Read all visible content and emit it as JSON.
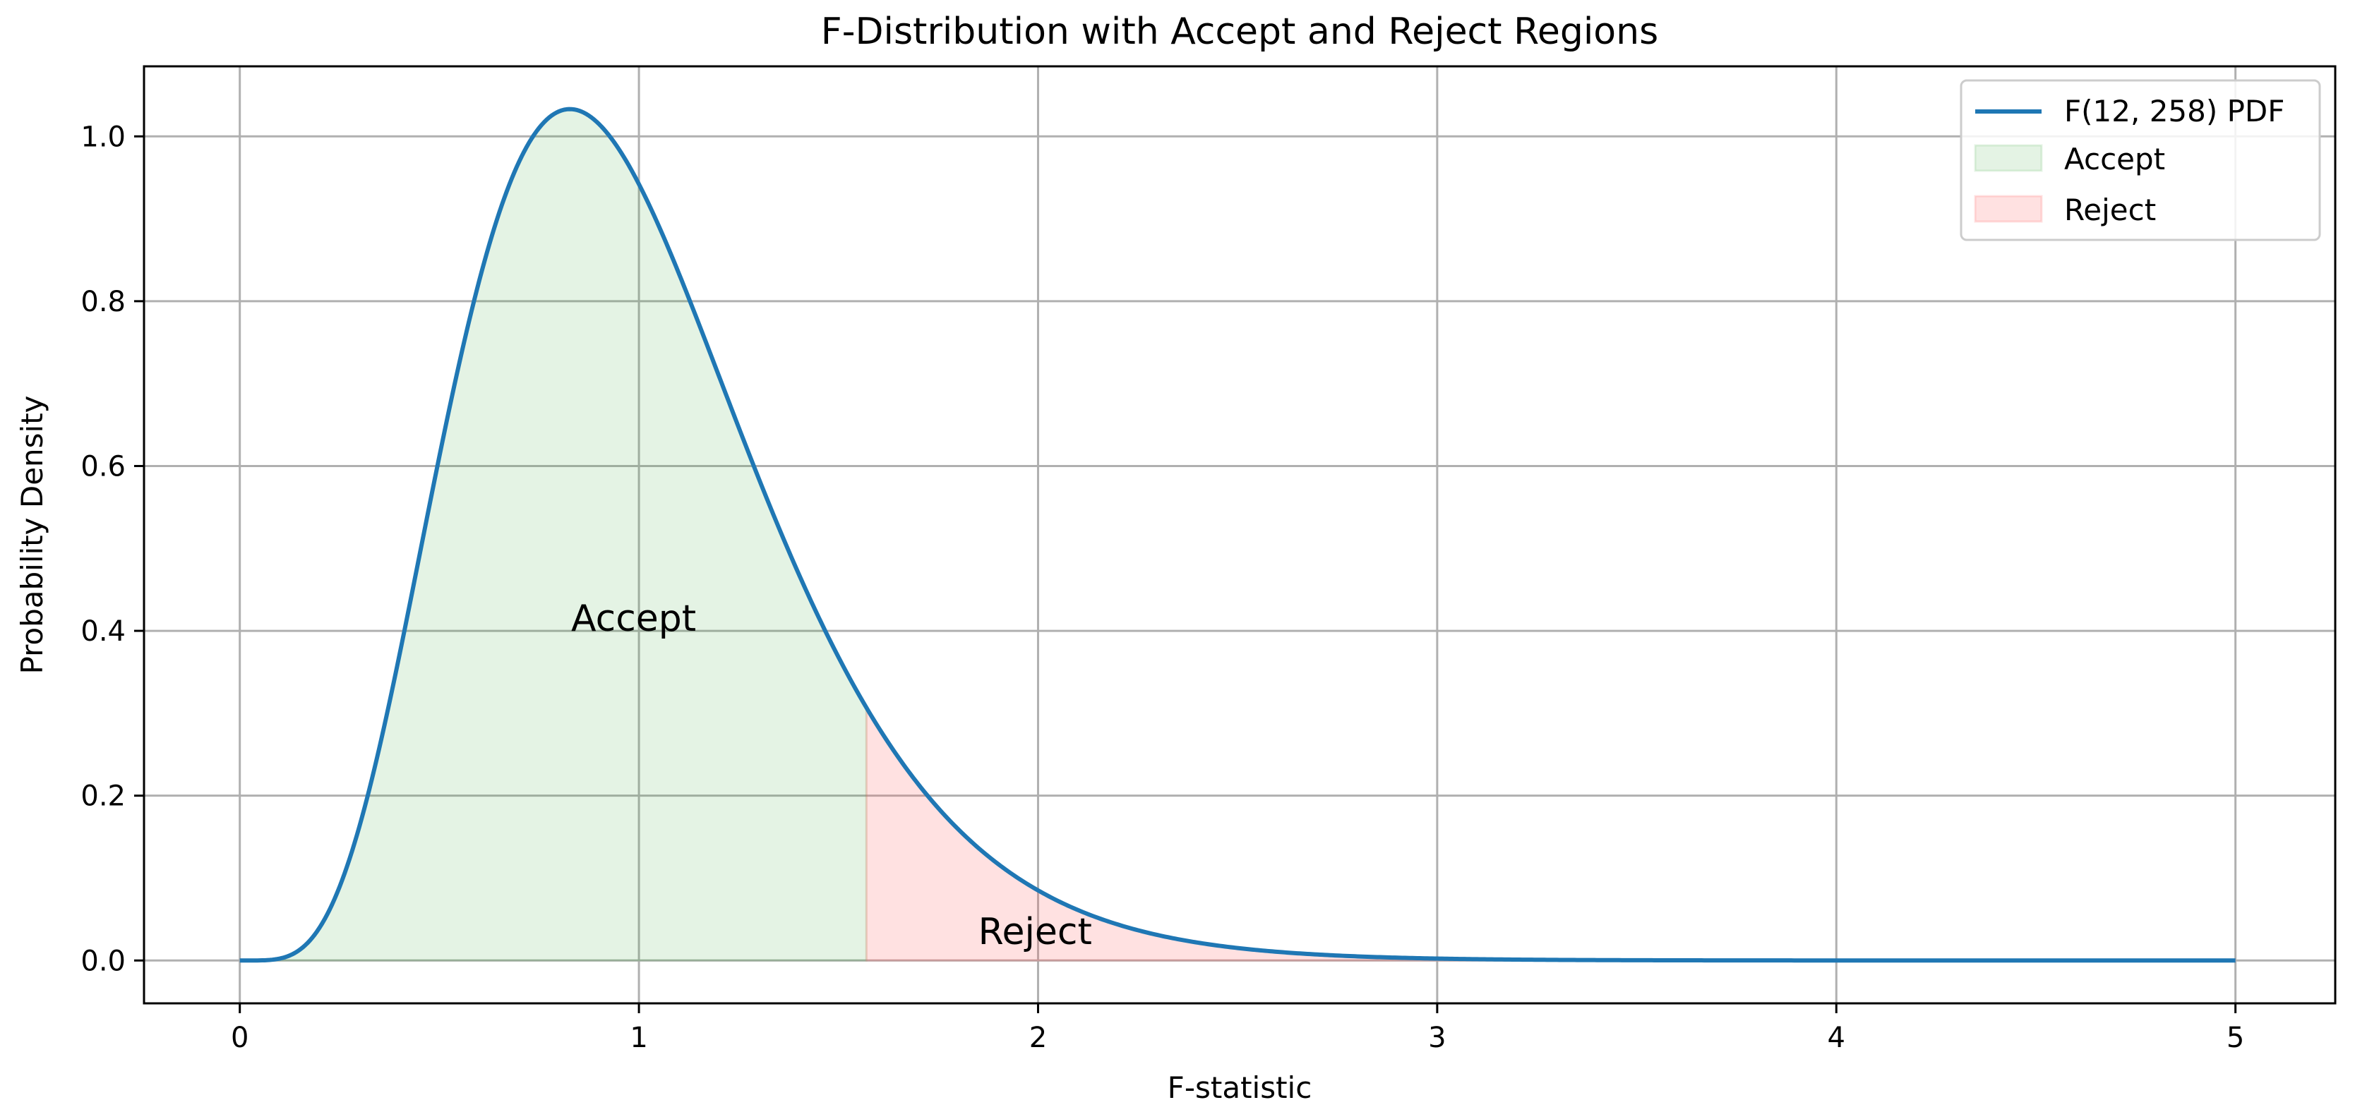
{
  "chart_data": {
    "type": "area",
    "title": "F-Distribution with Accept and Reject Regions",
    "xlabel": "F-statistic",
    "ylabel": "Probability Density",
    "xlim": [
      -0.24,
      5.25
    ],
    "ylim": [
      -0.052,
      1.085
    ],
    "x_ticks": [
      "0",
      "1",
      "2",
      "3",
      "4",
      "5"
    ],
    "y_ticks": [
      "0.0",
      "0.2",
      "0.4",
      "0.6",
      "0.8",
      "1.0"
    ],
    "grid": true,
    "legend_position": "top-right",
    "distribution": {
      "dfn": 12,
      "dfd": 258
    },
    "critical_value": 1.57,
    "x_range": [
      0,
      5
    ],
    "series": [
      {
        "name": "F(12, 258) PDF",
        "kind": "line",
        "color": "#1f77b4"
      },
      {
        "name": "Accept",
        "kind": "fill",
        "color": "#2ca02c",
        "alpha": 0.13,
        "x_range": [
          0,
          1.57
        ]
      },
      {
        "name": "Reject",
        "kind": "fill",
        "color": "#ff6b6b",
        "alpha": 0.2,
        "x_range": [
          1.57,
          5
        ]
      }
    ],
    "annotations": [
      {
        "text": "Accept",
        "x": 0.83,
        "y": 0.4
      },
      {
        "text": "Reject",
        "x": 1.85,
        "y": 0.02
      }
    ]
  }
}
